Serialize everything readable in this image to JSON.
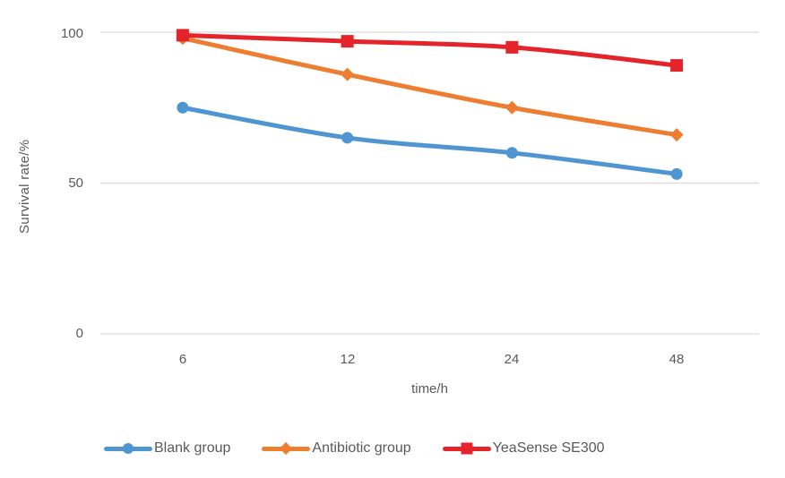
{
  "chart_data": {
    "type": "line",
    "title": "",
    "xlabel": "time/h",
    "ylabel": "Survival rate/%",
    "categories": [
      "6",
      "12",
      "24",
      "48"
    ],
    "yticks": [
      "100",
      "50",
      "0"
    ],
    "ylim": [
      0,
      100
    ],
    "grid": "horizontal-gridlines-only",
    "legend_position": "bottom",
    "series": [
      {
        "name": "Blank group",
        "marker": "circle",
        "color": "#4E95D2",
        "values": [
          75,
          65,
          60,
          53
        ]
      },
      {
        "name": "Antibiotic group",
        "marker": "diamond",
        "color": "#ED7D31",
        "values": [
          98,
          86,
          75,
          66
        ]
      },
      {
        "name": "YeaSense SE300",
        "marker": "square",
        "color": "#E4232B",
        "values": [
          99,
          97,
          95,
          89
        ]
      }
    ],
    "colors": {
      "gridline": "#D9D9D9",
      "axis_text": "#595959"
    }
  }
}
